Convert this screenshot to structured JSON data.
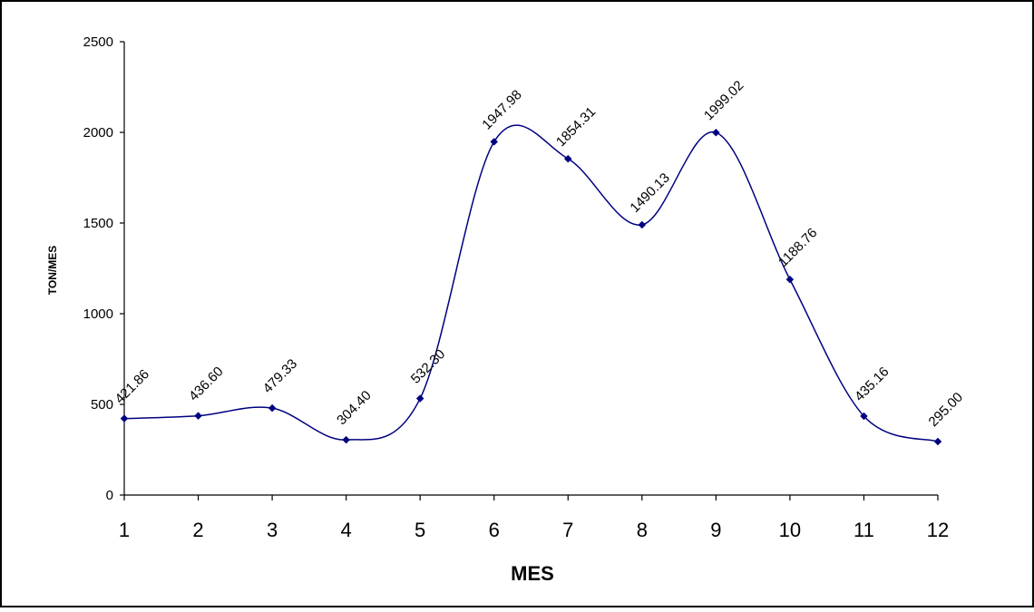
{
  "chart_data": {
    "type": "line",
    "title": "",
    "xlabel": "MES",
    "ylabel": "TON/MES",
    "categories": [
      "1",
      "2",
      "3",
      "4",
      "5",
      "6",
      "7",
      "8",
      "9",
      "10",
      "11",
      "12"
    ],
    "x": [
      1,
      2,
      3,
      4,
      5,
      6,
      7,
      8,
      9,
      10,
      11,
      12
    ],
    "series": [
      {
        "values": [
          421.86,
          436.6,
          479.33,
          304.4,
          532.3,
          1947.98,
          1854.31,
          1490.13,
          1999.02,
          1188.76,
          435.16,
          295.0
        ],
        "labels": [
          "421.86",
          "436.60",
          "479.33",
          "304.40",
          "532.30",
          "1947.98",
          "1854.31",
          "1490.13",
          "1999.02",
          "1188.76",
          "435.16",
          "295.00"
        ],
        "color": "#000080",
        "marker": "diamond",
        "smooth": true
      }
    ],
    "ylim": [
      0,
      2500
    ],
    "yticks": [
      0,
      500,
      1000,
      1500,
      2000,
      2500
    ],
    "ytick_labels": [
      "0",
      "500",
      "1000",
      "1500",
      "2000",
      "2500"
    ],
    "grid": false,
    "legend": "none",
    "data_label_rotation_deg": -45
  }
}
